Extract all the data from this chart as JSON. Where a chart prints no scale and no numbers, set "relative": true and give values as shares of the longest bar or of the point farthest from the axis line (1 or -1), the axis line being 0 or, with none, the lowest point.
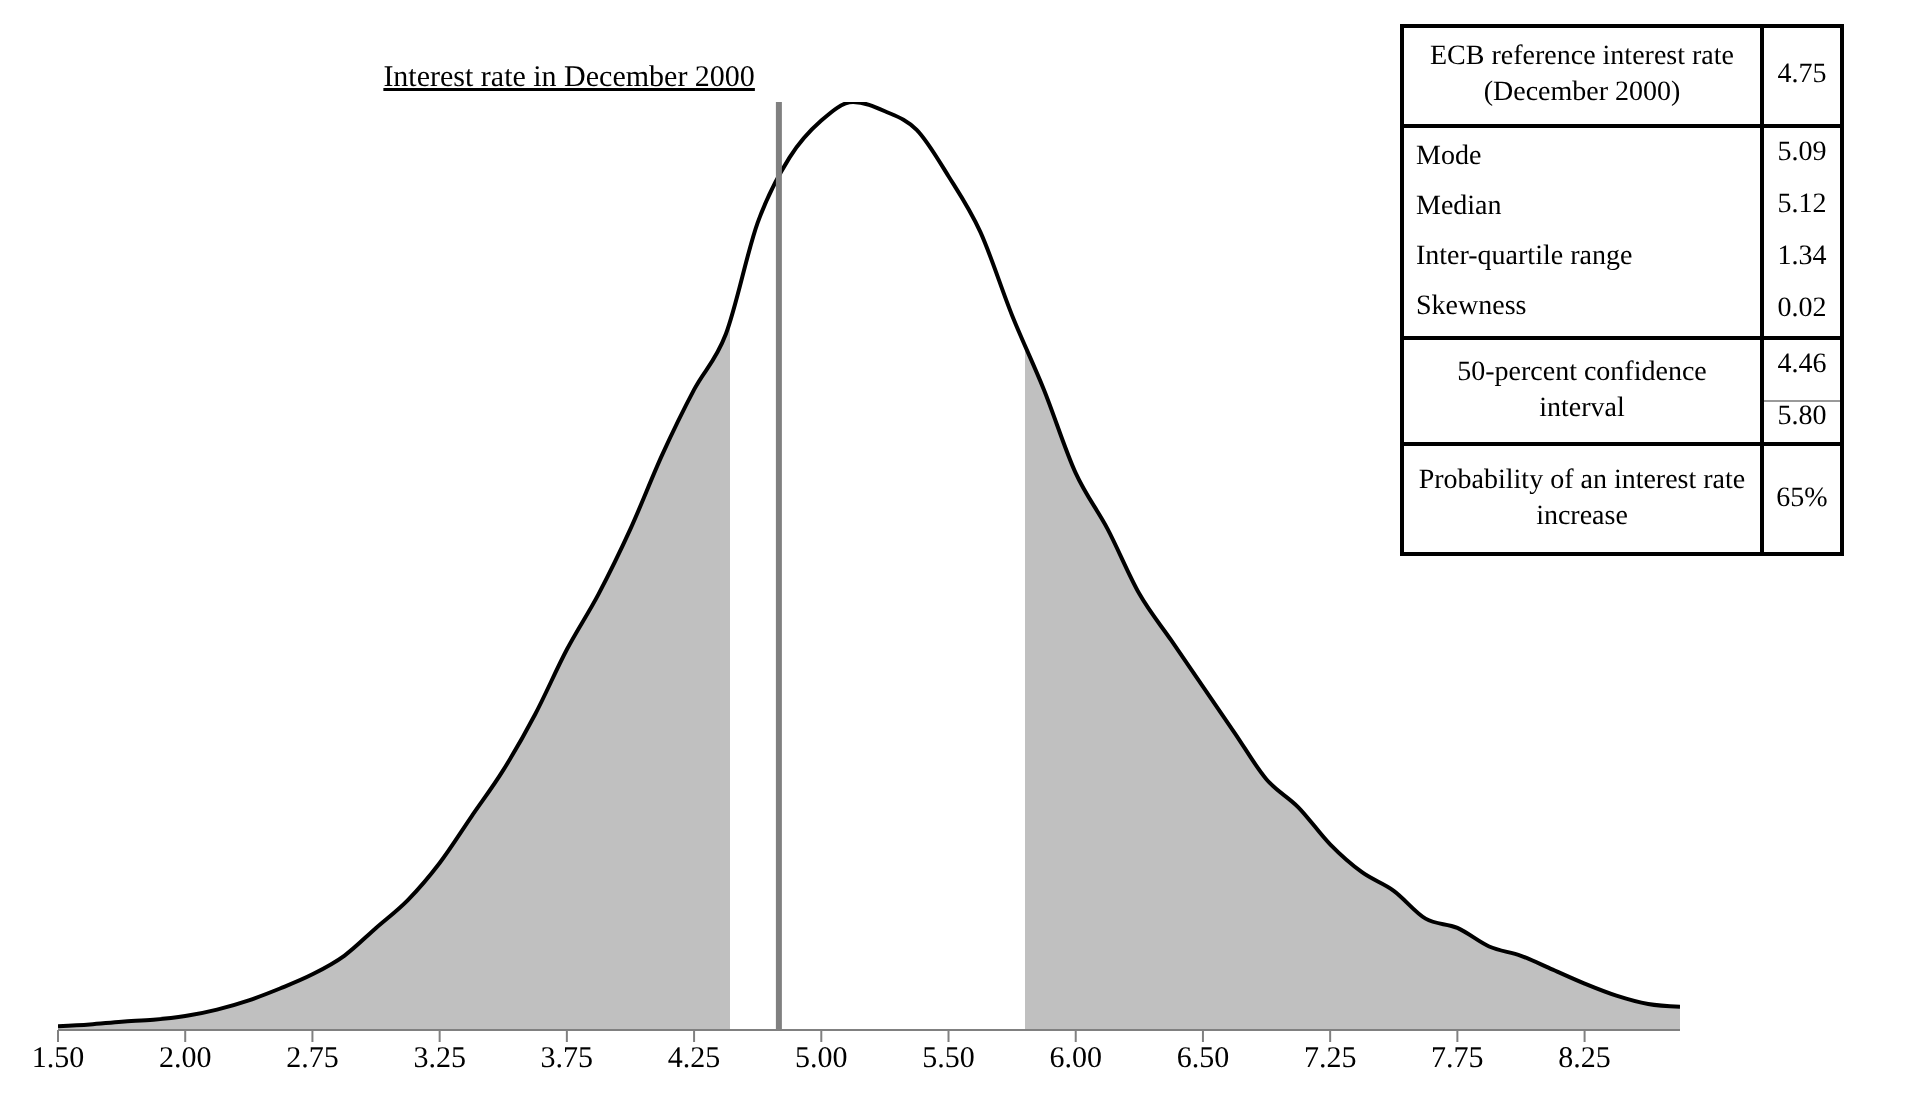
{
  "chart_data": {
    "type": "area",
    "relative": true,
    "categories": [
      "1.50",
      null,
      null,
      null,
      "2.00",
      null,
      null,
      null,
      "2.75",
      null,
      null,
      null,
      "3.25",
      null,
      null,
      null,
      "3.75",
      null,
      null,
      null,
      "4.25",
      null,
      null,
      null,
      "5.00",
      null,
      null,
      null,
      "5.50",
      null,
      null,
      null,
      "6.00",
      null,
      null,
      null,
      "6.50",
      null,
      null,
      null,
      "7.25",
      null,
      null,
      null,
      "7.75",
      null,
      null,
      null,
      "8.25",
      null,
      null,
      null
    ],
    "series": [
      {
        "color": "#c0c0c0",
        "values": [
          0.004,
          0.006,
          0.009,
          0.011,
          0.015,
          0.022,
          0.032,
          0.045,
          0.06,
          0.08,
          0.11,
          0.14,
          0.18,
          0.23,
          0.28,
          0.34,
          0.41,
          0.47,
          0.54,
          0.62,
          0.69,
          0.75,
          0.87,
          0.94,
          0.98,
          1.0,
          0.99,
          0.97,
          0.92,
          0.86,
          0.77,
          0.69,
          0.6,
          0.54,
          0.47,
          0.42,
          0.37,
          0.32,
          0.27,
          0.24,
          0.2,
          0.17,
          0.15,
          0.12,
          0.11,
          0.09,
          0.08,
          0.065,
          0.05,
          0.037,
          0.028,
          0.025
        ]
      }
    ],
    "annotations": [
      "ECB reference interest rate (December 2000)",
      "4.75",
      "Mode",
      "5.09",
      "Median",
      "5.12",
      "Inter-quartile range",
      "1.34",
      "Skewness",
      "0.02",
      "50-percent confidence interval",
      "4.46",
      "5.80",
      "Probability of an interest rate increase",
      "65%",
      "Interest rate in December 2000"
    ]
  }
}
